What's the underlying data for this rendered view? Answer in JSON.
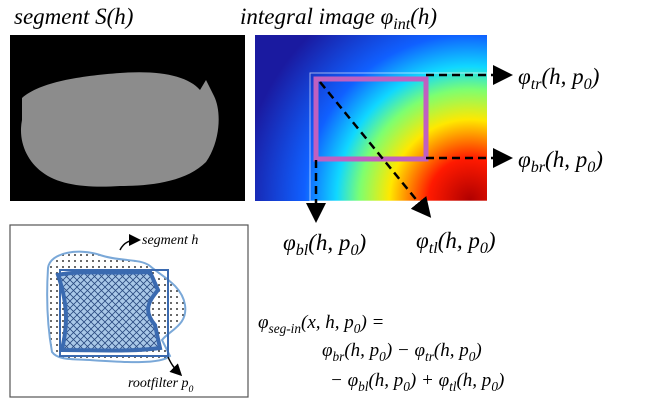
{
  "titles": {
    "segment": [
      "segment S(h)"
    ],
    "integral": [
      "integral image φ",
      "int",
      "(h)"
    ]
  },
  "corners": {
    "tr": [
      "φ",
      "tr",
      "(h, p",
      "0",
      ")"
    ],
    "br": [
      "φ",
      "br",
      "(h, p",
      "0",
      ")"
    ],
    "bl": [
      "φ",
      "bl",
      "(h, p",
      "0",
      ")"
    ],
    "tl": [
      "φ",
      "tl",
      "(h, p",
      "0",
      ")"
    ]
  },
  "inset": {
    "segment": [
      "segment h"
    ],
    "rootfilter": [
      "rootfilter p",
      "0"
    ]
  },
  "equation": [
    [
      "φ",
      "seg-in",
      "(x, h, p",
      "0",
      ") ="
    ],
    [
      "φ",
      "br",
      "(h, p",
      "0",
      ") − φ",
      "tr",
      "(h, p",
      "0",
      ")"
    ],
    [
      "− φ",
      "bl",
      "(h, p",
      "0",
      ") + φ",
      "tl",
      "(h, p",
      "0",
      ")"
    ]
  ]
}
